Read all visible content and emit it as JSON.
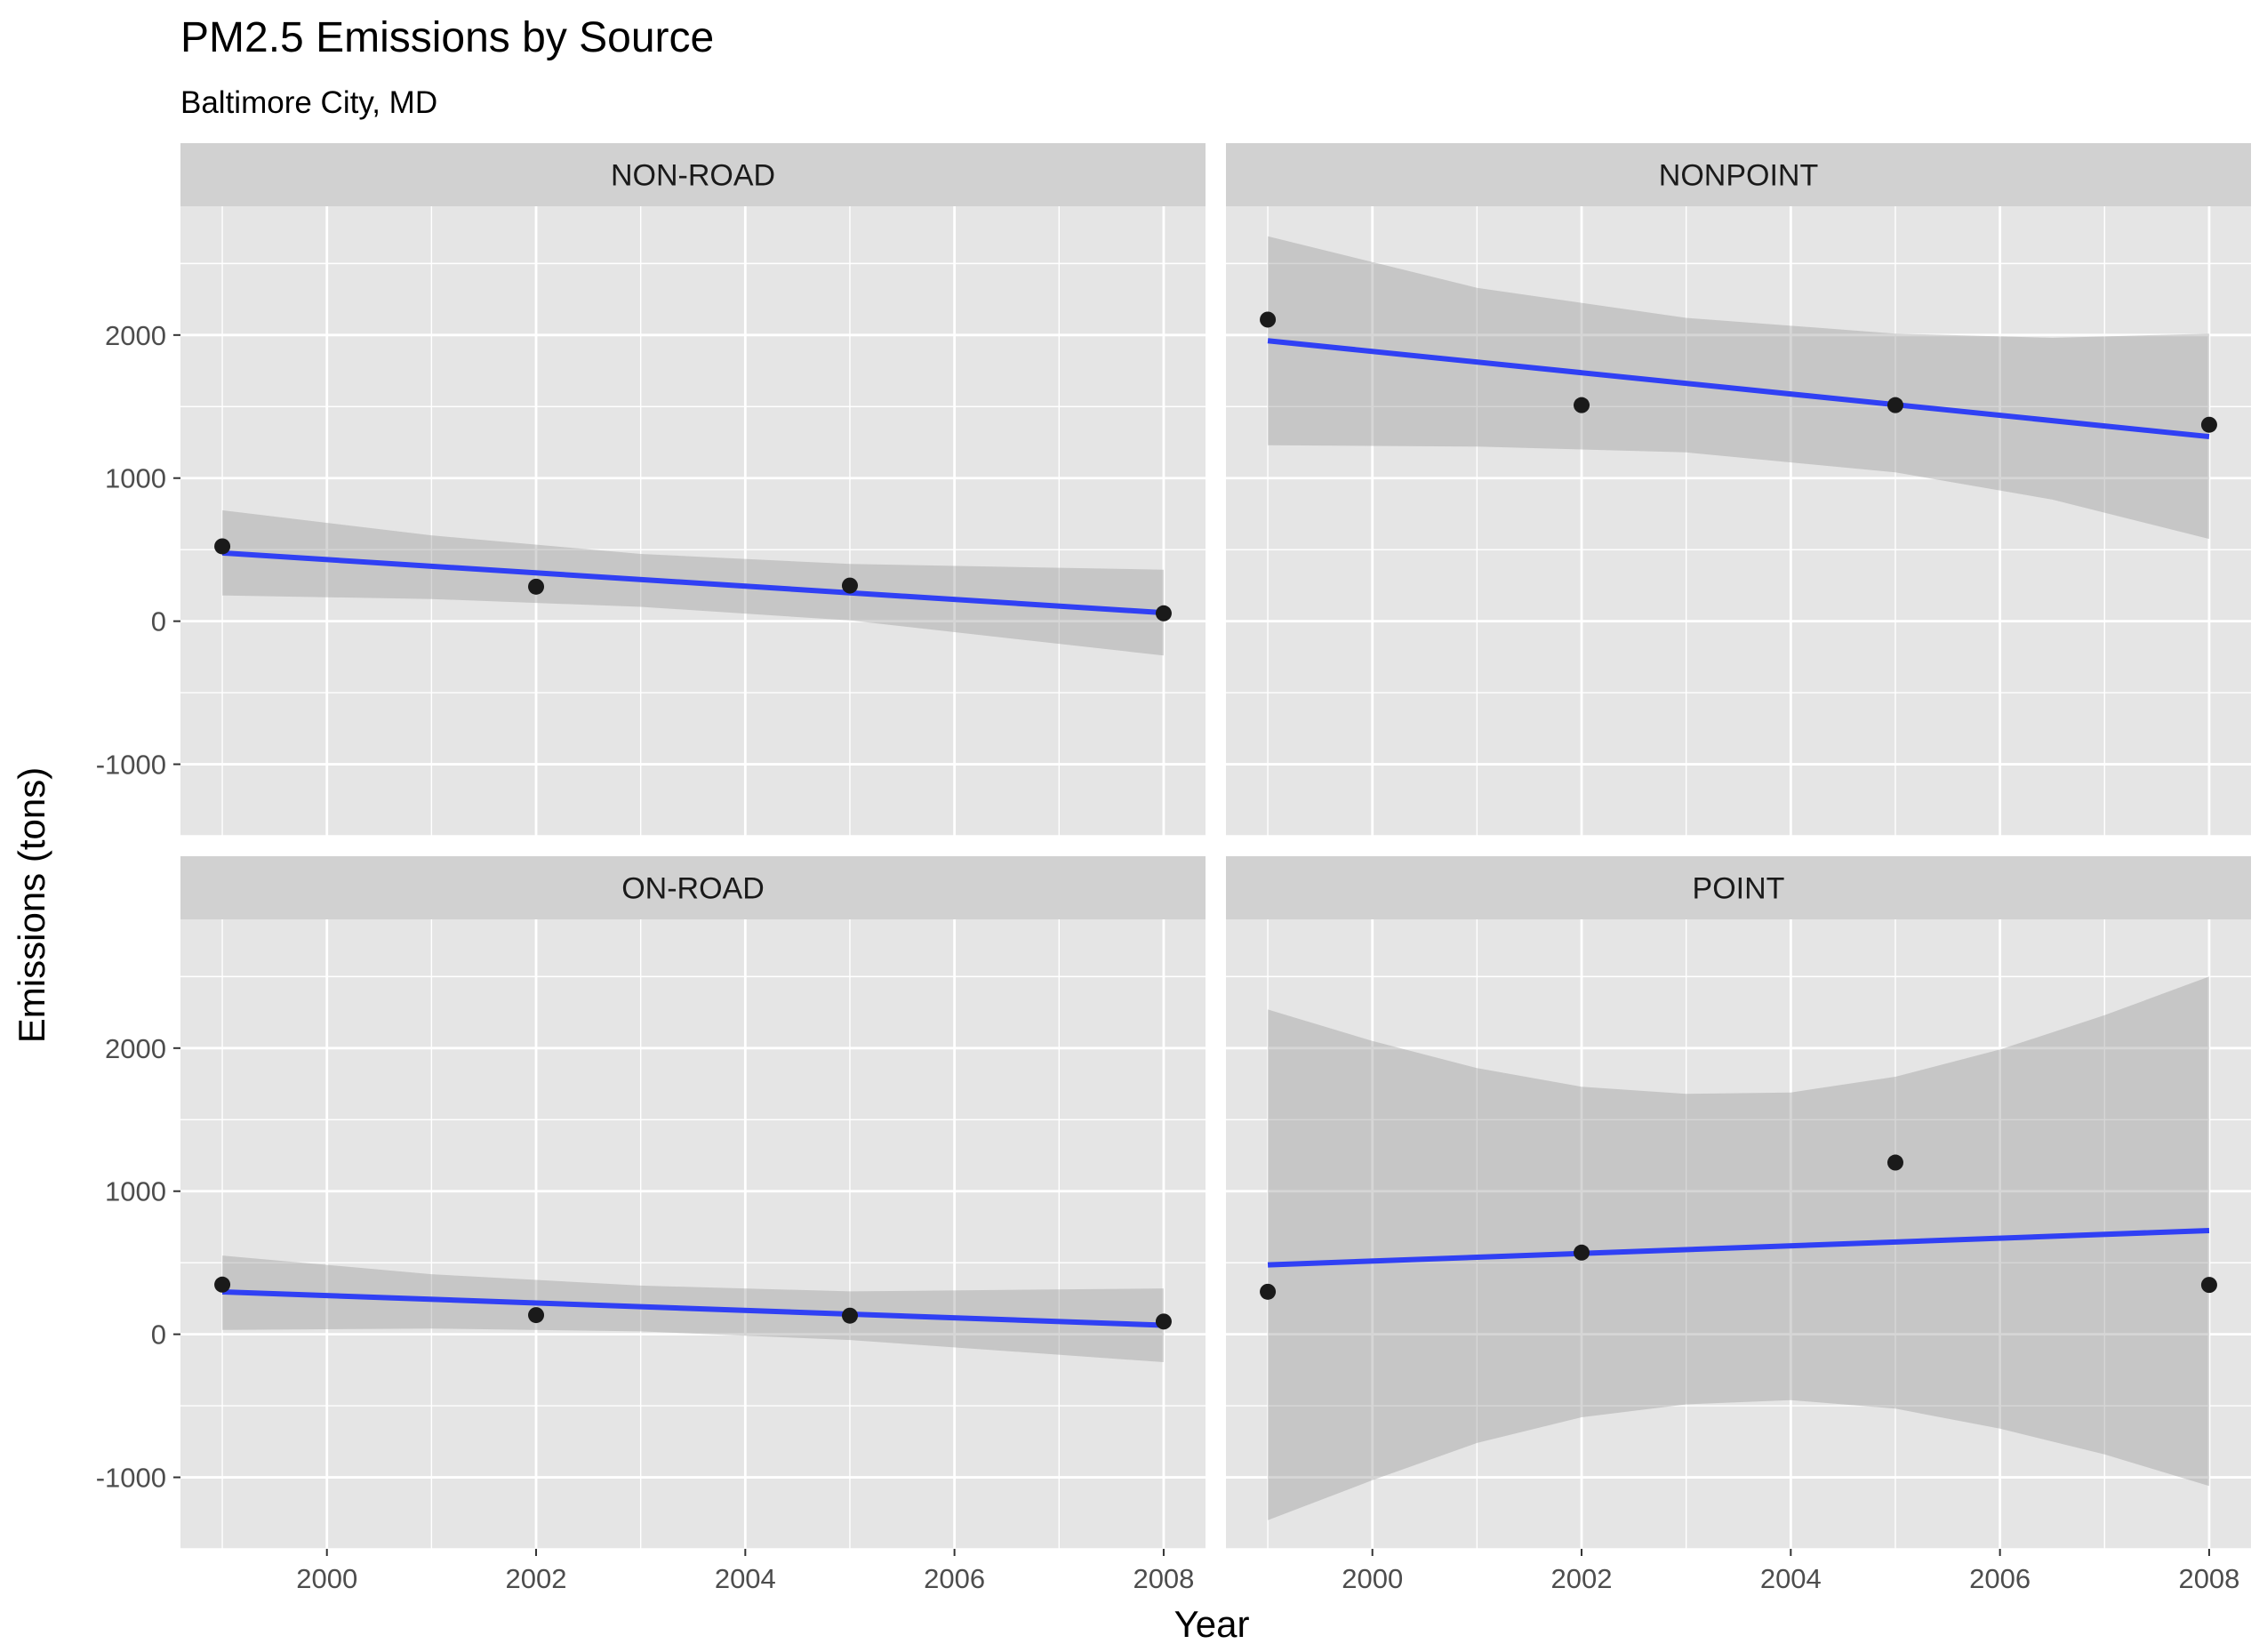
{
  "chart_data": {
    "type": "scatter",
    "title": "PM2.5 Emissions by Source",
    "subtitle": "Baltimore City, MD",
    "xlabel": "Year",
    "ylabel": "Emissions (tons)",
    "xlim": [
      1998.6,
      2008.4
    ],
    "ylim": [
      -1500,
      2900
    ],
    "x_ticks": [
      2000,
      2002,
      2004,
      2006,
      2008
    ],
    "y_ticks": [
      -1000,
      0,
      1000,
      2000
    ],
    "grid": true,
    "facet_layout": "2x2",
    "colors": {
      "panel_bg": "#e5e5e5",
      "strip_bg": "#d1d1d1",
      "gridline": "#ffffff",
      "point": "#1a1a1a",
      "fit_line": "#3040f4",
      "ribbon": "#999999",
      "tick_label": "#4d4d4d",
      "text": "#000000"
    },
    "panels": [
      {
        "label": "NON-ROAD",
        "points": [
          {
            "x": 1999,
            "y": 523
          },
          {
            "x": 2002,
            "y": 241
          },
          {
            "x": 2005,
            "y": 249
          },
          {
            "x": 2008,
            "y": 55
          }
        ],
        "fit": [
          {
            "x": 1999,
            "y": 477
          },
          {
            "x": 2008,
            "y": 59
          }
        ],
        "ribbon_upper": [
          {
            "x": 1999,
            "y": 775
          },
          {
            "x": 2001,
            "y": 600
          },
          {
            "x": 2003,
            "y": 470
          },
          {
            "x": 2005,
            "y": 400
          },
          {
            "x": 2008,
            "y": 360
          }
        ],
        "ribbon_lower": [
          {
            "x": 1999,
            "y": 180
          },
          {
            "x": 2001,
            "y": 155
          },
          {
            "x": 2003,
            "y": 100
          },
          {
            "x": 2005,
            "y": 5
          },
          {
            "x": 2008,
            "y": -240
          }
        ]
      },
      {
        "label": "NONPOINT",
        "points": [
          {
            "x": 1999,
            "y": 2108
          },
          {
            "x": 2002,
            "y": 1510
          },
          {
            "x": 2005,
            "y": 1510
          },
          {
            "x": 2008,
            "y": 1373
          }
        ],
        "fit": [
          {
            "x": 1999,
            "y": 1960
          },
          {
            "x": 2008,
            "y": 1290
          }
        ],
        "ribbon_upper": [
          {
            "x": 1999,
            "y": 2690
          },
          {
            "x": 2001,
            "y": 2330
          },
          {
            "x": 2003,
            "y": 2120
          },
          {
            "x": 2005,
            "y": 2010
          },
          {
            "x": 2006.5,
            "y": 1980
          },
          {
            "x": 2008,
            "y": 2010
          }
        ],
        "ribbon_lower": [
          {
            "x": 1999,
            "y": 1230
          },
          {
            "x": 2001,
            "y": 1220
          },
          {
            "x": 2003,
            "y": 1180
          },
          {
            "x": 2005,
            "y": 1040
          },
          {
            "x": 2006.5,
            "y": 850
          },
          {
            "x": 2008,
            "y": 575
          }
        ]
      },
      {
        "label": "ON-ROAD",
        "points": [
          {
            "x": 1999,
            "y": 347
          },
          {
            "x": 2002,
            "y": 134
          },
          {
            "x": 2005,
            "y": 130
          },
          {
            "x": 2008,
            "y": 89
          }
        ],
        "fit": [
          {
            "x": 1999,
            "y": 296
          },
          {
            "x": 2008,
            "y": 63
          }
        ],
        "ribbon_upper": [
          {
            "x": 1999,
            "y": 550
          },
          {
            "x": 2001,
            "y": 420
          },
          {
            "x": 2003,
            "y": 340
          },
          {
            "x": 2005,
            "y": 300
          },
          {
            "x": 2008,
            "y": 320
          }
        ],
        "ribbon_lower": [
          {
            "x": 1999,
            "y": 30
          },
          {
            "x": 2001,
            "y": 40
          },
          {
            "x": 2003,
            "y": 20
          },
          {
            "x": 2005,
            "y": -40
          },
          {
            "x": 2008,
            "y": -195
          }
        ]
      },
      {
        "label": "POINT",
        "points": [
          {
            "x": 1999,
            "y": 297
          },
          {
            "x": 2002,
            "y": 571
          },
          {
            "x": 2005,
            "y": 1200
          },
          {
            "x": 2008,
            "y": 345
          }
        ],
        "fit": [
          {
            "x": 1999,
            "y": 485
          },
          {
            "x": 2008,
            "y": 725
          }
        ],
        "ribbon_upper": [
          {
            "x": 1999,
            "y": 2270
          },
          {
            "x": 2000,
            "y": 2050
          },
          {
            "x": 2001,
            "y": 1860
          },
          {
            "x": 2002,
            "y": 1730
          },
          {
            "x": 2003,
            "y": 1680
          },
          {
            "x": 2004,
            "y": 1690
          },
          {
            "x": 2005,
            "y": 1800
          },
          {
            "x": 2006,
            "y": 1990
          },
          {
            "x": 2007,
            "y": 2230
          },
          {
            "x": 2008,
            "y": 2500
          }
        ],
        "ribbon_lower": [
          {
            "x": 1999,
            "y": -1300
          },
          {
            "x": 2000,
            "y": -1020
          },
          {
            "x": 2001,
            "y": -760
          },
          {
            "x": 2002,
            "y": -580
          },
          {
            "x": 2003,
            "y": -490
          },
          {
            "x": 2004,
            "y": -460
          },
          {
            "x": 2005,
            "y": -520
          },
          {
            "x": 2006,
            "y": -660
          },
          {
            "x": 2007,
            "y": -840
          },
          {
            "x": 2008,
            "y": -1060
          }
        ]
      }
    ]
  }
}
